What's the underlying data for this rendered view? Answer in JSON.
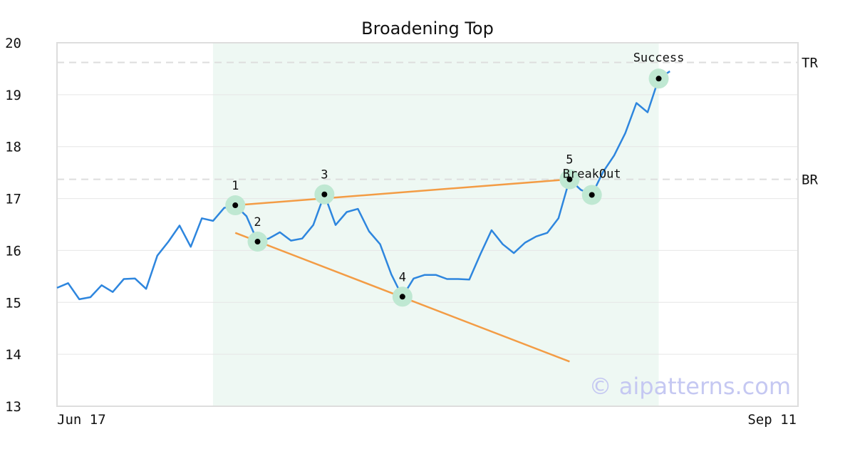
{
  "chart_data": {
    "type": "line",
    "title": "Broadening Top",
    "ylim": [
      13,
      20
    ],
    "yticks": [
      "13",
      "14",
      "15",
      "16",
      "17",
      "18",
      "19",
      "20"
    ],
    "x_labels": {
      "start": "Jun 17",
      "end": "Sep 11"
    },
    "x_range": [
      0,
      61
    ],
    "pattern_window": [
      14,
      54
    ],
    "series": [
      {
        "x": [
          0,
          1,
          2,
          3,
          4,
          5,
          6,
          7,
          8,
          9,
          10,
          11,
          12,
          13,
          14,
          15,
          16,
          17,
          18,
          19,
          20,
          21,
          22,
          23,
          24,
          25,
          26,
          27,
          28,
          29,
          30,
          31,
          32,
          33,
          34,
          35,
          36,
          37,
          38,
          39,
          40,
          41,
          42,
          43,
          44,
          45,
          46,
          47,
          48,
          49,
          50,
          51,
          52,
          53,
          54,
          55
        ],
        "y": [
          15.28,
          15.37,
          15.06,
          15.1,
          15.33,
          15.2,
          15.45,
          15.46,
          15.26,
          15.9,
          16.17,
          16.48,
          16.07,
          16.62,
          16.57,
          16.82,
          16.87,
          16.66,
          16.17,
          16.23,
          16.35,
          16.19,
          16.23,
          16.49,
          17.08,
          16.49,
          16.74,
          16.8,
          16.37,
          16.12,
          15.54,
          15.11,
          15.46,
          15.53,
          15.53,
          15.45,
          15.45,
          15.44,
          15.93,
          16.39,
          16.12,
          15.95,
          16.15,
          16.27,
          16.34,
          16.62,
          17.37,
          17.17,
          17.07,
          17.51,
          17.83,
          18.26,
          18.84,
          18.66,
          19.31,
          19.45
        ]
      }
    ],
    "trendlines": [
      {
        "name": "upper",
        "from": [
          16,
          16.87
        ],
        "to": [
          46,
          17.37
        ]
      },
      {
        "name": "lower",
        "from": [
          16,
          16.34
        ],
        "to": [
          46,
          13.86
        ]
      }
    ],
    "levels": [
      {
        "label": "TR",
        "value": 19.62
      },
      {
        "label": "BR",
        "value": 17.37
      }
    ],
    "points": [
      {
        "label": "1",
        "x": 16,
        "y": 16.87
      },
      {
        "label": "2",
        "x": 18,
        "y": 16.17
      },
      {
        "label": "3",
        "x": 24,
        "y": 17.08
      },
      {
        "label": "4",
        "x": 31,
        "y": 15.11
      },
      {
        "label": "5",
        "x": 46,
        "y": 17.37
      }
    ],
    "annotations": [
      {
        "label": "BreakOut",
        "x": 48,
        "y": 17.07
      },
      {
        "label": "Success",
        "x": 54,
        "y": 19.31
      }
    ],
    "watermark": "© aipatterns.com",
    "colors": {
      "price": "#2e86de",
      "trendline": "#f39c45",
      "marker_halo": "#bfe8d2",
      "marker_dot": "#000000",
      "pattern_zone": "#eef8f3",
      "grid": "#e6e6e6",
      "level_line": "#dddddd",
      "frame": "#dddddd"
    }
  }
}
